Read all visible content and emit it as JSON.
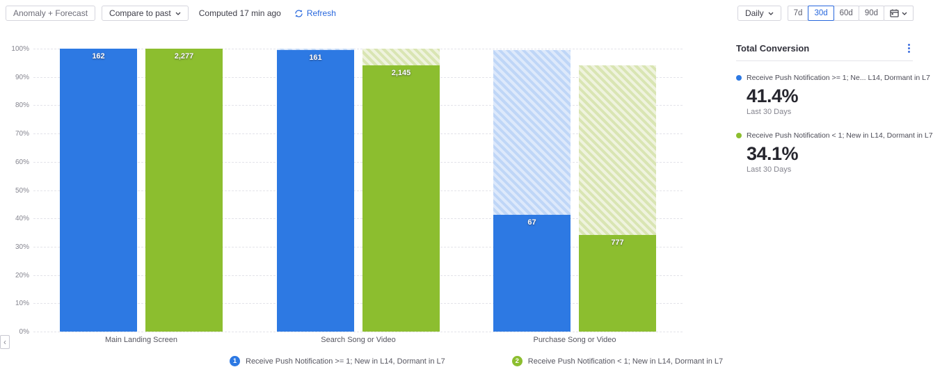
{
  "toolbar": {
    "anomaly_forecast_label": "Anomaly + Forecast",
    "compare_label": "Compare to past",
    "computed_text": "Computed 17 min ago",
    "refresh_label": "Refresh",
    "interval_label": "Daily",
    "range_buttons": [
      "7d",
      "30d",
      "60d",
      "90d"
    ],
    "selected_range": "30d"
  },
  "chart_data": {
    "type": "bar",
    "subtype": "funnel-conversion-stacked",
    "title": "",
    "categories": [
      "Main Landing Screen",
      "Search Song or Video",
      "Purchase Song or Video"
    ],
    "y_ticks": [
      "0%",
      "10%",
      "20%",
      "30%",
      "40%",
      "50%",
      "60%",
      "70%",
      "80%",
      "90%",
      "100%"
    ],
    "ylim": [
      0,
      100
    ],
    "grid": "dashed-horizontal",
    "series": [
      {
        "name": "Receive Push Notification >= 1; New in L14, Dormant in L7",
        "color": "#2d79e3",
        "hatch_colors": [
          "#bfd6f7",
          "#dde9fb"
        ],
        "counts": [
          "162",
          "161",
          "67"
        ],
        "pct": [
          100,
          99.4,
          41.4
        ]
      },
      {
        "name": "Receive Push Notification < 1; New in L14, Dormant in L7",
        "color": "#8cbe2f",
        "hatch_colors": [
          "#d9e5b3",
          "#eff3de"
        ],
        "counts": [
          "2,277",
          "2,145",
          "777"
        ],
        "pct": [
          100,
          94.2,
          34.1
        ]
      }
    ]
  },
  "bottom_legend": [
    {
      "index": "1",
      "label": "Receive Push Notification >= 1; New in L14, Dormant in L7",
      "color": "#2d79e3"
    },
    {
      "index": "2",
      "label": "Receive Push Notification < 1; New in L14, Dormant in L7",
      "color": "#8cbe2f"
    }
  ],
  "panel": {
    "title": "Total Conversion",
    "entries": [
      {
        "label": "Receive Push Notification >= 1; Ne...  L14, Dormant in L7",
        "value": "41.4%",
        "sublabel": "Last 30 Days",
        "color": "#2d79e3"
      },
      {
        "label": "Receive Push Notification < 1; New in L14, Dormant in L7",
        "value": "34.1%",
        "sublabel": "Last 30 Days",
        "color": "#8cbe2f"
      }
    ]
  },
  "icons": {
    "refresh": "circular-arrows",
    "calendar": "calendar-glyph",
    "chevron_down": "v-chevron",
    "kebab": "three-vertical-dots",
    "collapse": "left-chevron"
  },
  "colors": {
    "accent_blue": "#2767dd",
    "series_blue": "#2d79e3",
    "series_green": "#8cbe2f",
    "grid": "#e3e3e9",
    "text_dark": "#32323c",
    "text_muted": "#84848e"
  }
}
